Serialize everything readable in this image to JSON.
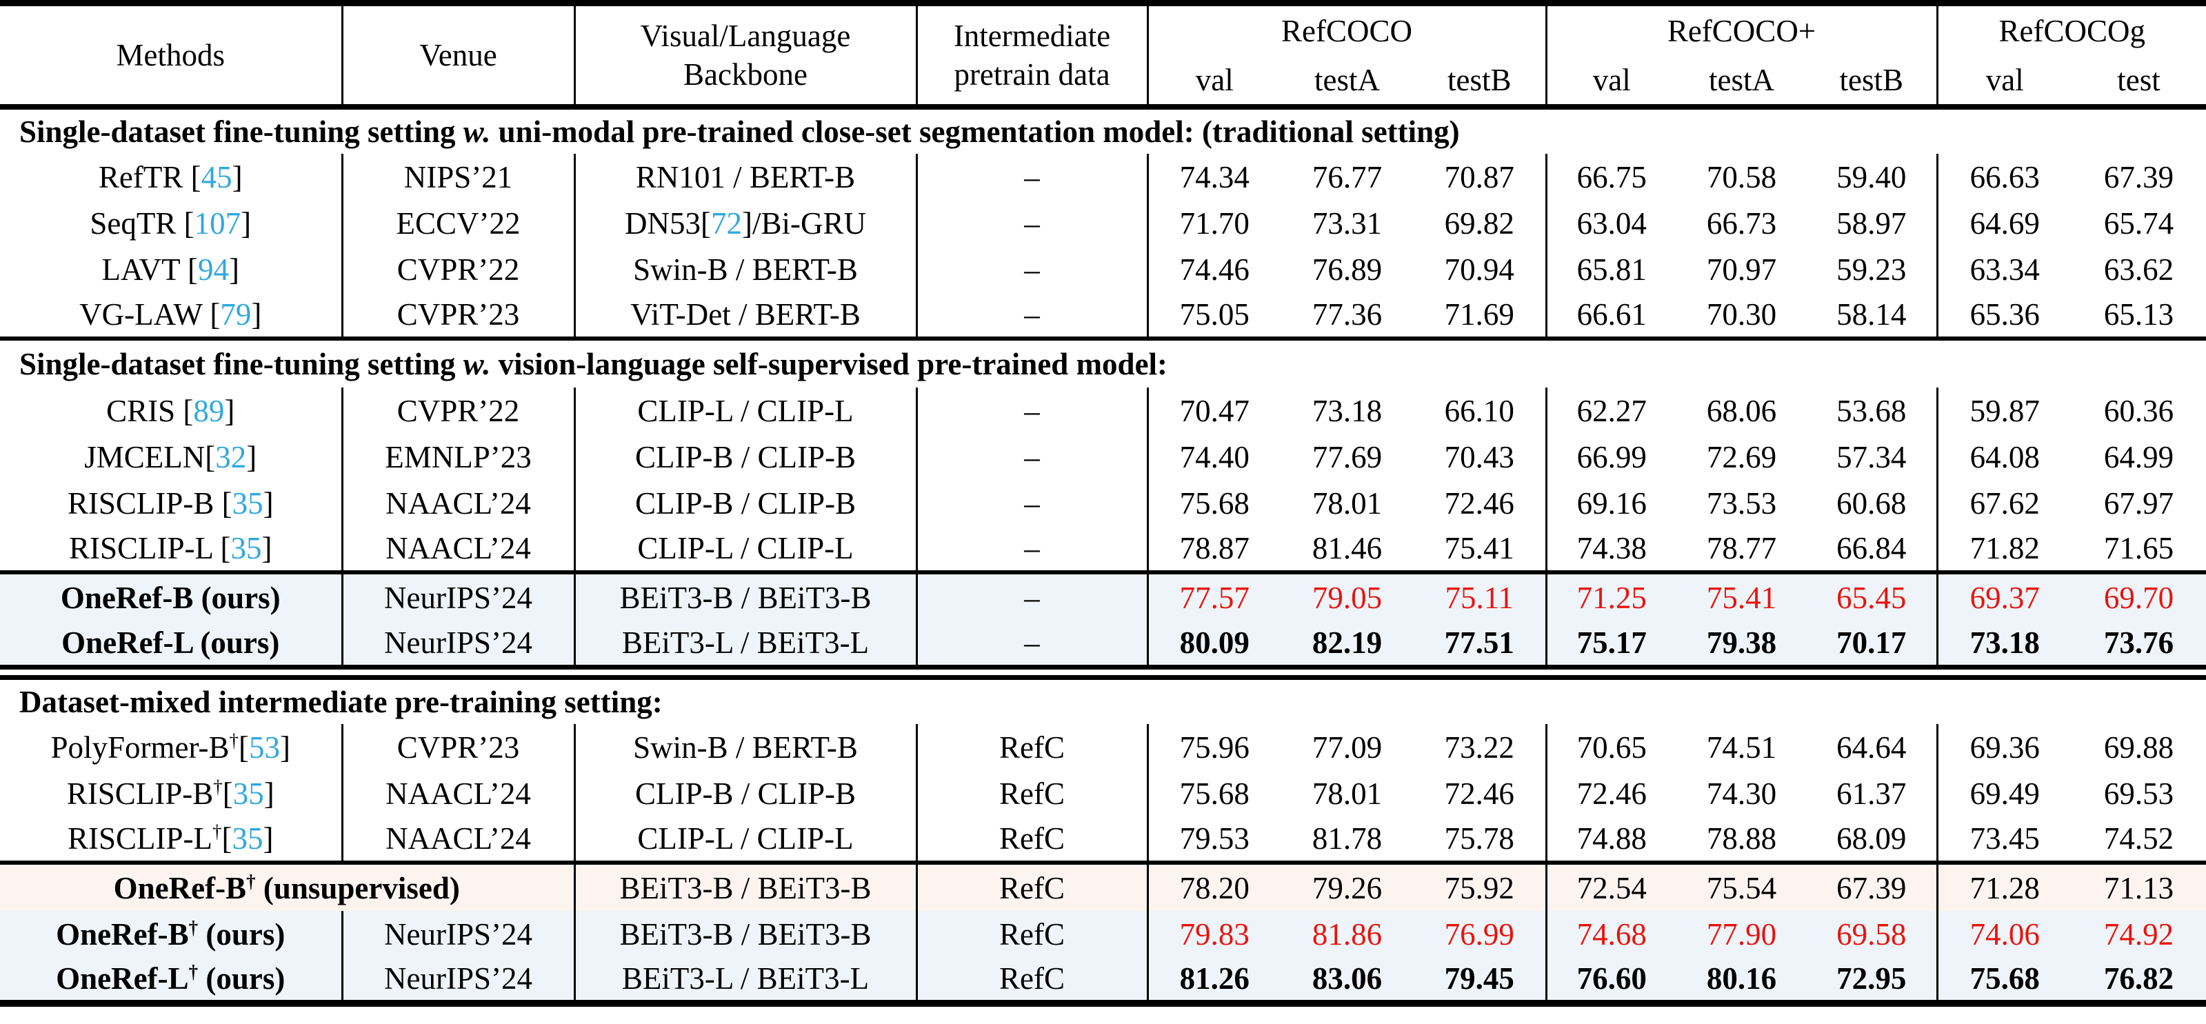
{
  "colors": {
    "citation": "#2fa8e0",
    "highlight_red": "#e8140c",
    "row_blue": "#eef4f9",
    "row_pink": "#fdf4f0",
    "rule_black": "#000000"
  },
  "header": {
    "methods": "Methods",
    "venue": "Venue",
    "backbone_line1": "Visual/Language",
    "backbone_line2": "Backbone",
    "pretrain_line1": "Intermediate",
    "pretrain_line2": "pretrain data",
    "groups": [
      {
        "label": "RefCOCO",
        "subs": [
          "val",
          "testA",
          "testB"
        ]
      },
      {
        "label": "RefCOCO+",
        "subs": [
          "val",
          "testA",
          "testB"
        ]
      },
      {
        "label": "RefCOCOg",
        "subs": [
          "val",
          "test"
        ]
      }
    ]
  },
  "body": [
    {
      "title": [
        {
          "t": "Single-dataset fine-tuning setting ",
          "b": 1
        },
        {
          "t": "w.",
          "b": 1,
          "i": 1
        },
        {
          "t": " uni-modal pre-trained close-set segmentation model: (traditional setting)",
          "b": 1
        }
      ]
    },
    {
      "rows": [
        {
          "method": [
            {
              "t": "RefTR ["
            },
            {
              "t": "45",
              "c": 1
            },
            {
              "t": "]"
            }
          ],
          "venue": "NIPS’21",
          "backbone": "RN101 / BERT-B",
          "pretrain": "–",
          "values": [
            "74.34",
            "76.77",
            "70.87",
            "66.75",
            "70.58",
            "59.40",
            "66.63",
            "67.39"
          ],
          "vstyle": "plain"
        },
        {
          "method": [
            {
              "t": "SeqTR ["
            },
            {
              "t": "107",
              "c": 1
            },
            {
              "t": "]"
            }
          ],
          "venue": "ECCV’22",
          "backbone": [
            {
              "t": "DN53["
            },
            {
              "t": "72",
              "c": 1
            },
            {
              "t": "]/Bi-GRU"
            }
          ],
          "pretrain": "–",
          "values": [
            "71.70",
            "73.31",
            "69.82",
            "63.04",
            "66.73",
            "58.97",
            "64.69",
            "65.74"
          ],
          "vstyle": "plain"
        },
        {
          "method": [
            {
              "t": "LAVT ["
            },
            {
              "t": "94",
              "c": 1
            },
            {
              "t": "]"
            }
          ],
          "venue": "CVPR’22",
          "backbone": "Swin-B / BERT-B",
          "pretrain": "–",
          "values": [
            "74.46",
            "76.89",
            "70.94",
            "65.81",
            "70.97",
            "59.23",
            "63.34",
            "63.62"
          ],
          "vstyle": "plain"
        },
        {
          "method": [
            {
              "t": "VG-LAW ["
            },
            {
              "t": "79",
              "c": 1
            },
            {
              "t": "]"
            }
          ],
          "venue": "CVPR’23",
          "backbone": "ViT-Det / BERT-B",
          "pretrain": "–",
          "values": [
            "75.05",
            "77.36",
            "71.69",
            "66.61",
            "70.30",
            "58.14",
            "65.36",
            "65.13"
          ],
          "vstyle": "plain"
        }
      ]
    },
    {
      "rule": "single"
    },
    {
      "title": [
        {
          "t": "Single-dataset fine-tuning setting ",
          "b": 1
        },
        {
          "t": "w.",
          "b": 1,
          "i": 1
        },
        {
          "t": " vision-language self-supervised pre-trained model:",
          "b": 1
        }
      ]
    },
    {
      "rows": [
        {
          "method": [
            {
              "t": "CRIS ["
            },
            {
              "t": "89",
              "c": 1
            },
            {
              "t": "]"
            }
          ],
          "venue": "CVPR’22",
          "backbone": "CLIP-L / CLIP-L",
          "pretrain": "–",
          "values": [
            "70.47",
            "73.18",
            "66.10",
            "62.27",
            "68.06",
            "53.68",
            "59.87",
            "60.36"
          ],
          "vstyle": "plain"
        },
        {
          "method": [
            {
              "t": "JMCELN["
            },
            {
              "t": "32",
              "c": 1
            },
            {
              "t": "]"
            }
          ],
          "venue": "EMNLP’23",
          "backbone": "CLIP-B / CLIP-B",
          "pretrain": "–",
          "values": [
            "74.40",
            "77.69",
            "70.43",
            "66.99",
            "72.69",
            "57.34",
            "64.08",
            "64.99"
          ],
          "vstyle": "plain"
        },
        {
          "method": [
            {
              "t": "RISCLIP-B ["
            },
            {
              "t": "35",
              "c": 1
            },
            {
              "t": "]"
            }
          ],
          "venue": "NAACL’24",
          "backbone": "CLIP-B / CLIP-B",
          "pretrain": "–",
          "values": [
            "75.68",
            "78.01",
            "72.46",
            "69.16",
            "73.53",
            "60.68",
            "67.62",
            "67.97"
          ],
          "vstyle": "plain"
        },
        {
          "method": [
            {
              "t": "RISCLIP-L ["
            },
            {
              "t": "35",
              "c": 1
            },
            {
              "t": "]"
            }
          ],
          "venue": "NAACL’24",
          "backbone": "CLIP-L / CLIP-L",
          "pretrain": "–",
          "values": [
            "78.87",
            "81.46",
            "75.41",
            "74.38",
            "78.77",
            "66.84",
            "71.82",
            "71.65"
          ],
          "vstyle": "plain"
        }
      ]
    },
    {
      "rule": "single"
    },
    {
      "rows": [
        {
          "method": [
            {
              "t": "OneRef-B (ours)",
              "b": 1
            }
          ],
          "venue": "NeurIPS’24",
          "backbone": "BEiT3-B / BEiT3-B",
          "pretrain": "–",
          "values": [
            "77.57",
            "79.05",
            "75.11",
            "71.25",
            "75.41",
            "65.45",
            "69.37",
            "69.70"
          ],
          "vstyle": "red",
          "bg": "blue"
        },
        {
          "method": [
            {
              "t": "OneRef-L (ours)",
              "b": 1
            }
          ],
          "venue": "NeurIPS’24",
          "backbone": "BEiT3-L / BEiT3-L",
          "pretrain": "–",
          "values": [
            "80.09",
            "82.19",
            "77.51",
            "75.17",
            "79.38",
            "70.17",
            "73.18",
            "73.76"
          ],
          "vstyle": "bold",
          "bg": "blue"
        }
      ]
    },
    {
      "rule": "double"
    },
    {
      "title": [
        {
          "t": "Dataset-mixed intermediate pre-training setting:",
          "b": 1
        }
      ]
    },
    {
      "rows": [
        {
          "method": [
            {
              "t": "PolyFormer-B"
            },
            {
              "t": "†",
              "sup": 1
            },
            {
              "t": "["
            },
            {
              "t": "53",
              "c": 1
            },
            {
              "t": "]"
            }
          ],
          "venue": "CVPR’23",
          "backbone": "Swin-B / BERT-B",
          "pretrain": "RefC",
          "values": [
            "75.96",
            "77.09",
            "73.22",
            "70.65",
            "74.51",
            "64.64",
            "69.36",
            "69.88"
          ],
          "vstyle": "plain"
        },
        {
          "method": [
            {
              "t": "RISCLIP-B"
            },
            {
              "t": "†",
              "sup": 1
            },
            {
              "t": "["
            },
            {
              "t": "35",
              "c": 1
            },
            {
              "t": "]"
            }
          ],
          "venue": "NAACL’24",
          "backbone": "CLIP-B / CLIP-B",
          "pretrain": "RefC",
          "values": [
            "75.68",
            "78.01",
            "72.46",
            "72.46",
            "74.30",
            "61.37",
            "69.49",
            "69.53"
          ],
          "vstyle": "plain"
        },
        {
          "method": [
            {
              "t": "RISCLIP-L"
            },
            {
              "t": "†",
              "sup": 1
            },
            {
              "t": "["
            },
            {
              "t": "35",
              "c": 1
            },
            {
              "t": "]"
            }
          ],
          "venue": "NAACL’24",
          "backbone": "CLIP-L / CLIP-L",
          "pretrain": "RefC",
          "values": [
            "79.53",
            "81.78",
            "75.78",
            "74.88",
            "78.88",
            "68.09",
            "73.45",
            "74.52"
          ],
          "vstyle": "plain"
        }
      ]
    },
    {
      "rule": "single"
    },
    {
      "rows": [
        {
          "method": [
            {
              "t": "OneRef-B",
              "b": 1
            },
            {
              "t": "†",
              "b": 1,
              "sup": 1
            },
            {
              "t": " (unsupervised)",
              "b": 1
            }
          ],
          "method_colspan": 2,
          "backbone": "BEiT3-B / BEiT3-B",
          "pretrain": "RefC",
          "values": [
            "78.20",
            "79.26",
            "75.92",
            "72.54",
            "75.54",
            "67.39",
            "71.28",
            "71.13"
          ],
          "vstyle": "plain",
          "bg": "pink"
        },
        {
          "method": [
            {
              "t": "OneRef-B",
              "b": 1
            },
            {
              "t": "†",
              "b": 1,
              "sup": 1
            },
            {
              "t": " (ours)",
              "b": 1
            }
          ],
          "venue": "NeurIPS’24",
          "backbone": "BEiT3-B / BEiT3-B",
          "pretrain": "RefC",
          "values": [
            "79.83",
            "81.86",
            "76.99",
            "74.68",
            "77.90",
            "69.58",
            "74.06",
            "74.92"
          ],
          "vstyle": "red",
          "bg": "blue"
        },
        {
          "method": [
            {
              "t": "OneRef-L",
              "b": 1
            },
            {
              "t": "†",
              "b": 1,
              "sup": 1
            },
            {
              "t": " (ours)",
              "b": 1
            }
          ],
          "venue": "NeurIPS’24",
          "backbone": "BEiT3-L / BEiT3-L",
          "pretrain": "RefC",
          "values": [
            "81.26",
            "83.06",
            "79.45",
            "76.60",
            "80.16",
            "72.95",
            "75.68",
            "76.82"
          ],
          "vstyle": "bold",
          "bg": "blue"
        }
      ]
    },
    {
      "rule": "bottom"
    }
  ]
}
